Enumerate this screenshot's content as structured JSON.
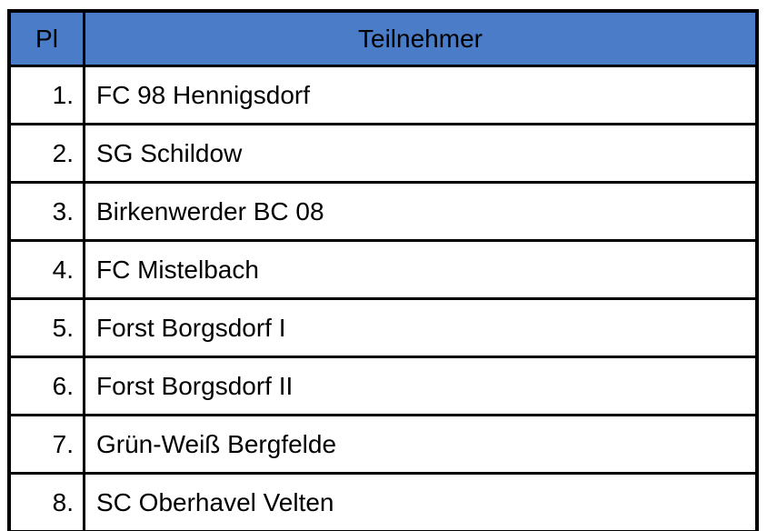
{
  "colors": {
    "header_bg": "#4A7CC7",
    "border": "#000000",
    "row_bg": "#FFFFFF",
    "text": "#000000"
  },
  "table": {
    "headers": {
      "pl": "Pl",
      "teilnehmer": "Teilnehmer"
    },
    "rows": [
      {
        "rank": "1.",
        "team": "FC 98 Hennigsdorf"
      },
      {
        "rank": "2.",
        "team": "SG Schildow"
      },
      {
        "rank": "3.",
        "team": "Birkenwerder BC 08"
      },
      {
        "rank": "4.",
        "team": "FC Mistelbach"
      },
      {
        "rank": "5.",
        "team": "Forst Borgsdorf I"
      },
      {
        "rank": "6.",
        "team": "Forst Borgsdorf II"
      },
      {
        "rank": "7.",
        "team": "Grün-Weiß Bergfelde"
      },
      {
        "rank": "8.",
        "team": "SC Oberhavel Velten"
      }
    ]
  }
}
